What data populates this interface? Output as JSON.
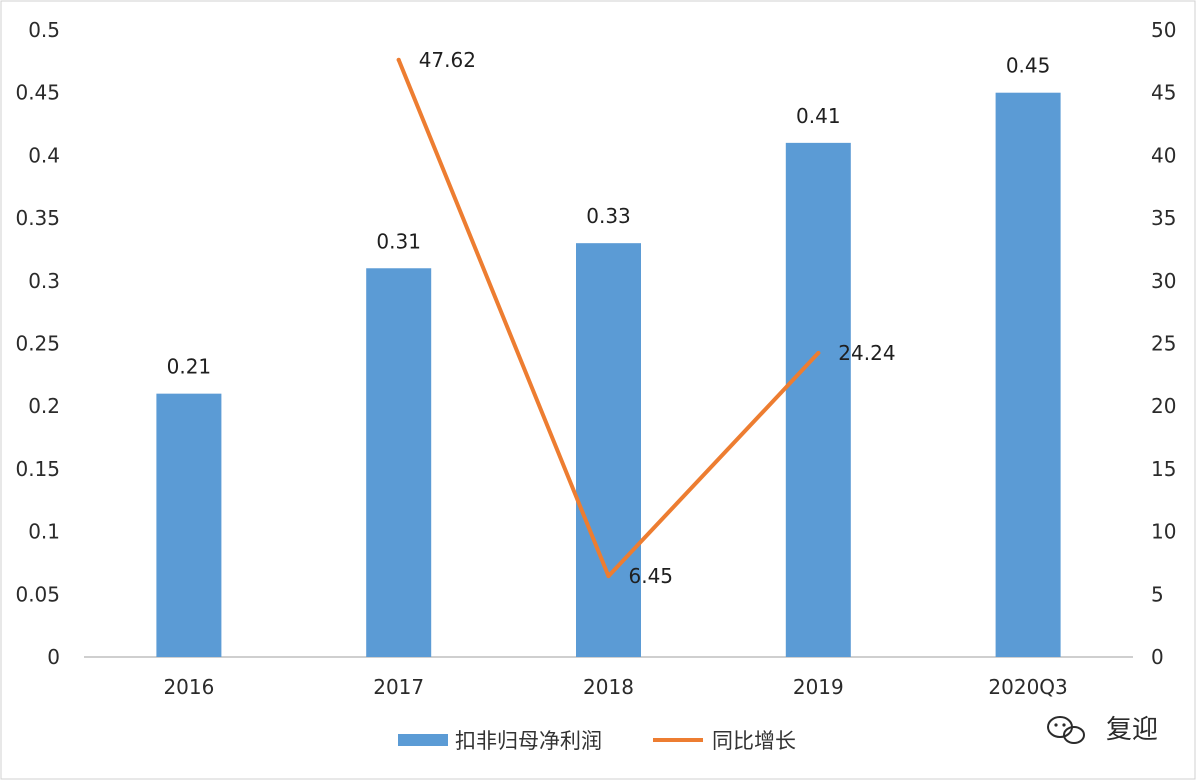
{
  "chart_data": {
    "type": "bar",
    "categories": [
      "2016",
      "2017",
      "2018",
      "2019",
      "2020Q3"
    ],
    "series": [
      {
        "name": "扣非归母净利润",
        "type": "bar",
        "axis": "left",
        "color": "#5b9bd5",
        "values": [
          0.21,
          0.31,
          0.33,
          0.41,
          0.45
        ],
        "labels": [
          "0.21",
          "0.31",
          "0.33",
          "0.41",
          "0.45"
        ]
      },
      {
        "name": "同比增长",
        "type": "line",
        "axis": "right",
        "color": "#ed7d31",
        "values": [
          null,
          47.62,
          6.45,
          24.24,
          null
        ],
        "labels": [
          "",
          "47.62",
          "6.45",
          "24.24",
          ""
        ]
      }
    ],
    "y_left": {
      "lim": [
        0,
        0.5
      ],
      "ticks": [
        "0",
        "0.05",
        "0.1",
        "0.15",
        "0.2",
        "0.25",
        "0.3",
        "0.35",
        "0.4",
        "0.45",
        "0.5"
      ]
    },
    "y_right": {
      "lim": [
        0,
        50
      ],
      "ticks": [
        "0",
        "5",
        "10",
        "15",
        "20",
        "25",
        "30",
        "35",
        "40",
        "45",
        "50"
      ]
    },
    "grid": false,
    "legend_position": "bottom"
  },
  "watermark": {
    "icon": "wechat-icon",
    "text": "复迎"
  }
}
